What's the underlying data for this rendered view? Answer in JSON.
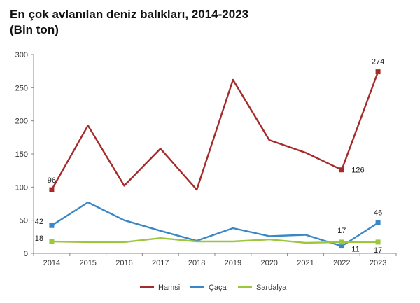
{
  "chart_data": {
    "type": "line",
    "title": "En çok avlanılan deniz balıkları, 2014-2023",
    "subtitle": "(Bin ton)",
    "x": [
      "2014",
      "2015",
      "2016",
      "2017",
      "2018",
      "2019",
      "2020",
      "2021",
      "2022",
      "2023"
    ],
    "ylim": [
      0,
      300
    ],
    "yticks": [
      0,
      50,
      100,
      150,
      200,
      250,
      300
    ],
    "grid": false,
    "legend": "bottom",
    "series": [
      {
        "name": "Hamsi",
        "color": "#a52a2a",
        "values": [
          96,
          193,
          102,
          158,
          96,
          262,
          171,
          152,
          126,
          274
        ]
      },
      {
        "name": "Çaça",
        "color": "#3a87c8",
        "values": [
          42,
          77,
          50,
          34,
          19,
          38,
          26,
          28,
          11,
          46
        ]
      },
      {
        "name": "Sardalya",
        "color": "#9cc63b",
        "values": [
          18,
          17,
          17,
          23,
          18,
          18,
          21,
          16,
          17,
          17
        ]
      }
    ],
    "annotations": [
      {
        "series": 0,
        "index": 0,
        "text": "96"
      },
      {
        "series": 0,
        "index": 8,
        "text": "126"
      },
      {
        "series": 0,
        "index": 9,
        "text": "274"
      },
      {
        "series": 1,
        "index": 0,
        "text": "42"
      },
      {
        "series": 1,
        "index": 8,
        "text": "11"
      },
      {
        "series": 1,
        "index": 9,
        "text": "46"
      },
      {
        "series": 2,
        "index": 0,
        "text": "18"
      },
      {
        "series": 2,
        "index": 8,
        "text": "17"
      },
      {
        "series": 2,
        "index": 9,
        "text": "17"
      }
    ]
  }
}
